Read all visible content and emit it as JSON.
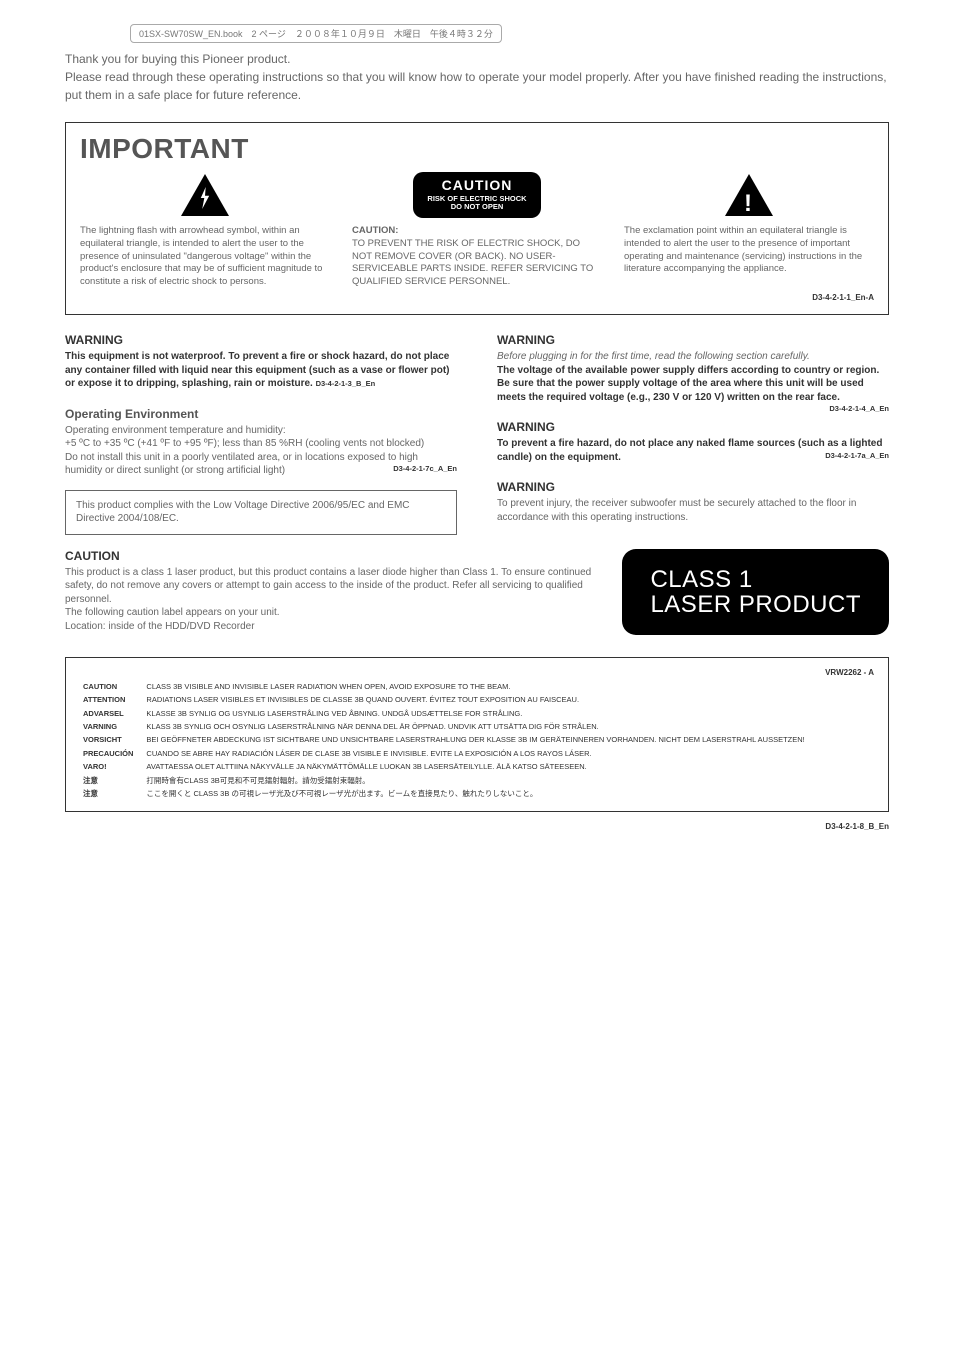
{
  "header_crop": "01SX-SW70SW_EN.book　2 ページ　２００８年１０月９日　木曜日　午後４時３２分",
  "intro_line1": "Thank you for buying this Pioneer product.",
  "intro_line2": "Please read through these operating instructions so that you will know how to operate your model properly. After you have finished reading the instructions, put them in a safe place for future reference.",
  "important": {
    "title": "IMPORTANT",
    "col1": "The lightning flash with arrowhead symbol, within an equilateral triangle, is intended to alert the user to the presence of uninsulated \"dangerous voltage\" within the product's enclosure that may be of sufficient magnitude to constitute a risk of electric shock to persons.",
    "caution_label": "CAUTION",
    "caution_sub1": "RISK OF ELECTRIC SHOCK",
    "caution_sub2": "DO NOT OPEN",
    "col2_head": "CAUTION:",
    "col2": "TO PREVENT THE RISK OF ELECTRIC SHOCK, DO NOT REMOVE COVER (OR BACK). NO USER-SERVICEABLE PARTS INSIDE. REFER SERVICING TO QUALIFIED SERVICE PERSONNEL.",
    "col3": "The exclamation point within an equilateral triangle is intended to alert the user to the presence of important operating and maintenance (servicing) instructions in the literature accompanying the appliance.",
    "code": "D3-4-2-1-1_En-A"
  },
  "warning1": {
    "title": "WARNING",
    "body": "This equipment is not waterproof. To prevent a fire or shock hazard, do not place any container filled with liquid near this equipment (such as a vase or flower pot) or expose it to dripping, splashing, rain or moisture.",
    "code": "D3-4-2-1-3_B_En"
  },
  "openv": {
    "title": "Operating Environment",
    "line1": "Operating environment temperature and humidity:",
    "line2": "+5 ºC to +35 ºC (+41 ºF to +95 ºF); less than 85 %RH (cooling vents not blocked)",
    "line3": "Do not install this unit in a poorly ventilated area, or in locations exposed to high humidity or direct sunlight (or strong artificial light)",
    "code": "D3-4-2-1-7c_A_En"
  },
  "compliance": "This product complies with the Low Voltage Directive 2006/95/EC and EMC Directive 2004/108/EC.",
  "warning2": {
    "title": "WARNING",
    "italic": "Before plugging in for the first time, read the following section carefully.",
    "body": "The voltage of the available power supply differs according to country or region. Be sure that the power supply voltage of the area where this unit will be used meets the required voltage (e.g., 230 V or 120 V) written on the rear face.",
    "code": "D3-4-2-1-4_A_En"
  },
  "warning3": {
    "title": "WARNING",
    "body": "To prevent a fire hazard, do not place any naked flame sources (such as a lighted candle) on the equipment.",
    "code": "D3-4-2-1-7a_A_En"
  },
  "warning4": {
    "title": "WARNING",
    "body": "To prevent injury, the receiver subwoofer must be securely attached to the floor in accordance with this operating instructions."
  },
  "caution_block": {
    "title": "CAUTION",
    "body": "This product is a class 1 laser product, but this product contains a laser diode higher than Class 1. To ensure continued safety, do not remove any covers or attempt to gain access to the inside of the product. Refer all servicing to qualified personnel.",
    "line2": "The following caution label appears on your unit.",
    "line3": "Location: inside of the HDD/DVD Recorder",
    "class1_line1": "CLASS 1",
    "class1_line2": "LASER PRODUCT"
  },
  "laser_label": {
    "vrw": "VRW2262 - A",
    "rows": [
      [
        "CAUTION",
        "CLASS 3B VISIBLE AND INVISIBLE LASER RADIATION WHEN OPEN, AVOID EXPOSURE TO THE BEAM."
      ],
      [
        "ATTENTION",
        "RADIATIONS LASER VISIBLES ET INVISIBLES DE CLASSE 3B QUAND OUVERT. ÉVITEZ TOUT EXPOSITION AU FAISCEAU."
      ],
      [
        "ADVARSEL",
        "KLASSE 3B SYNLIG OG USYNLIG LASERSTRÅLING VED ÅBNING. UNDGÅ UDSÆTTELSE FOR STRÅLING."
      ],
      [
        "VARNING",
        "KLASS 3B SYNLIG OCH OSYNLIG LASERSTRÅLNING NÄR DENNA DEL ÄR ÖPPNAD. UNDVIK ATT UTSÄTTA DIG FÖR STRÅLEN."
      ],
      [
        "VORSICHT",
        "BEI GEÖFFNETER ABDECKUNG IST SICHTBARE UND UNSICHTBARE LASERSTRAHLUNG DER KLASSE 3B IM GERÄTEINNEREN VORHANDEN. NICHT DEM LASERSTRAHL AUSSETZEN!"
      ],
      [
        "PRECAUCIÓN",
        "CUANDO SE ABRE HAY RADIACIÓN LÁSER DE CLASE 3B VISIBLE E INVISIBLE. EVITE LA EXPOSICIÓN A LOS RAYOS LÁSER."
      ],
      [
        "VARO!",
        "AVATTAESSA OLET ALTTIINA NÄKYVÄLLE JA NÄKYMÄTTÖMÄLLE LUOKAN 3B LASERSÄTEILYLLE. ÄLÄ KATSO SÄTEESEEN."
      ],
      [
        "注意",
        "打開時會有CLASS 3B可見和不可見鐳射輻射。請勿受鐳射束輻射。"
      ],
      [
        "注意",
        "ここを開くと CLASS 3B の可視レーザ光及び不可視レーザ光が出ます。ビームを直接見たり、触れたりしないこと。"
      ]
    ],
    "code": "D3-4-2-1-8_B_En"
  }
}
